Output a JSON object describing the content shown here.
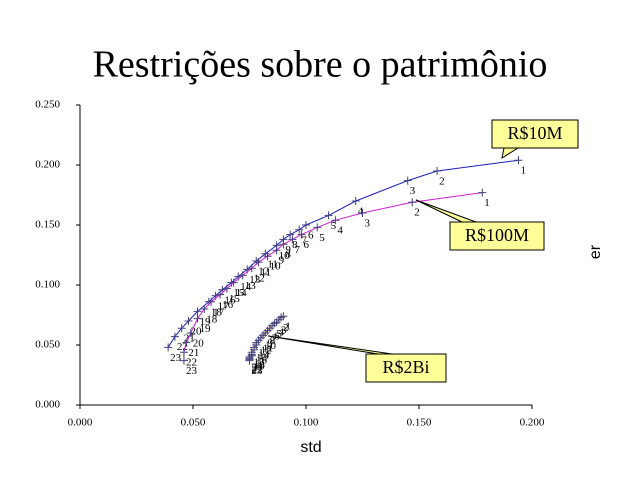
{
  "chart_data": {
    "type": "line",
    "title": "Restrições sobre o patrimônio",
    "xlabel": "std",
    "ylabel": "er",
    "xlim": [
      0,
      0.2
    ],
    "ylim": [
      0,
      0.25
    ],
    "xticks": [
      {
        "value": 0,
        "label": "0.000"
      },
      {
        "value": 0.05,
        "label": "0.050"
      },
      {
        "value": 0.1,
        "label": "0.100"
      },
      {
        "value": 0.15,
        "label": "0.150"
      },
      {
        "value": 0.2,
        "label": "0.200"
      }
    ],
    "yticks": [
      {
        "value": 0,
        "label": "0.000"
      },
      {
        "value": 0.05,
        "label": "0.050"
      },
      {
        "value": 0.1,
        "label": "0.100"
      },
      {
        "value": 0.15,
        "label": "0.150"
      },
      {
        "value": 0.2,
        "label": "0.200"
      },
      {
        "value": 0.25,
        "label": "0.250"
      }
    ],
    "grid": false,
    "series": [
      {
        "name": "R$10M",
        "color": "#2020c0",
        "x": [
          0.194,
          0.158,
          0.145,
          0.122,
          0.11,
          0.1,
          0.097,
          0.093,
          0.09,
          0.087,
          0.082,
          0.078,
          0.074,
          0.07,
          0.067,
          0.063,
          0.06,
          0.057,
          0.052,
          0.048,
          0.045,
          0.042,
          0.039
        ],
        "values": [
          0.204,
          0.195,
          0.187,
          0.17,
          0.158,
          0.15,
          0.146,
          0.142,
          0.138,
          0.133,
          0.126,
          0.12,
          0.113,
          0.107,
          0.102,
          0.096,
          0.091,
          0.086,
          0.078,
          0.07,
          0.064,
          0.057,
          0.048
        ],
        "point_labels": [
          1,
          2,
          3,
          4,
          5,
          6,
          7,
          8,
          9,
          10,
          11,
          12,
          13,
          14,
          15,
          16,
          17,
          18,
          19,
          20,
          21,
          22,
          23
        ]
      },
      {
        "name": "R$100M",
        "color": "#d020d0",
        "x": [
          0.178,
          0.147,
          0.125,
          0.113,
          0.105,
          0.098,
          0.094,
          0.09,
          0.087,
          0.083,
          0.079,
          0.076,
          0.072,
          0.068,
          0.065,
          0.062,
          0.058,
          0.055,
          0.052,
          0.049,
          0.047,
          0.046,
          0.046
        ],
        "values": [
          0.177,
          0.169,
          0.16,
          0.154,
          0.148,
          0.142,
          0.138,
          0.134,
          0.129,
          0.124,
          0.119,
          0.114,
          0.108,
          0.102,
          0.097,
          0.092,
          0.086,
          0.08,
          0.072,
          0.06,
          0.052,
          0.044,
          0.037
        ],
        "point_labels": [
          1,
          2,
          3,
          4,
          5,
          6,
          7,
          8,
          9,
          10,
          11,
          12,
          13,
          14,
          15,
          16,
          17,
          18,
          19,
          20,
          21,
          22,
          23
        ]
      },
      {
        "name": "R$2Bi",
        "color": "#c07020",
        "x": [
          0.09,
          0.089,
          0.088,
          0.087,
          0.086,
          0.085,
          0.084,
          0.083,
          0.082,
          0.081,
          0.08,
          0.079,
          0.078,
          0.078,
          0.077,
          0.077,
          0.076,
          0.076,
          0.076,
          0.075,
          0.075,
          0.075,
          0.075
        ],
        "values": [
          0.074,
          0.073,
          0.071,
          0.069,
          0.068,
          0.066,
          0.064,
          0.062,
          0.06,
          0.058,
          0.056,
          0.054,
          0.052,
          0.05,
          0.048,
          0.046,
          0.044,
          0.042,
          0.041,
          0.04,
          0.039,
          0.038,
          0.037
        ],
        "point_labels": [
          1,
          2,
          3,
          4,
          5,
          6,
          7,
          8,
          9,
          10,
          11,
          12,
          13,
          14,
          15,
          16,
          17,
          18,
          19,
          20,
          21,
          22,
          23
        ]
      }
    ]
  }
}
